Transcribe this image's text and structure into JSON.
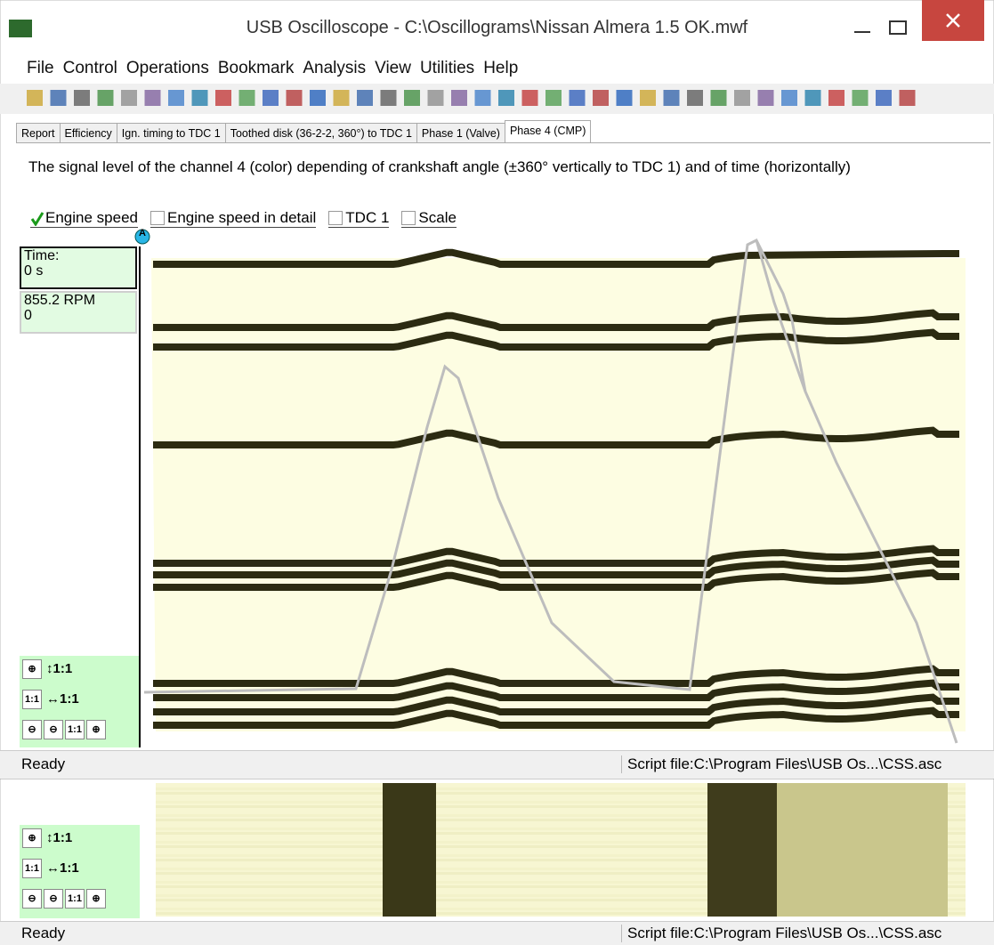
{
  "window": {
    "title": "USB Oscilloscope - C:\\Oscillograms\\Nissan Almera 1.5 OK.mwf"
  },
  "menu": [
    "File",
    "Control",
    "Operations",
    "Bookmark",
    "Analysis",
    "View",
    "Utilities",
    "Help"
  ],
  "tabs": [
    "Report",
    "Efficiency",
    "Ign. timing to TDC 1",
    "Toothed disk (36-2-2, 360°) to TDC 1",
    "Phase 1 (Valve)",
    "Phase 4 (CMP)"
  ],
  "description": "The signal level of the channel 4 (color) depending of crankshaft angle (±360° vertically to TDC 1) and of time (horizontally)",
  "options": [
    {
      "label": "Engine speed",
      "checked": true
    },
    {
      "label": "Engine speed in detail",
      "checked": false
    },
    {
      "label": "TDC 1",
      "checked": false
    },
    {
      "label": "Scale",
      "checked": false
    }
  ],
  "cursor_label": "A",
  "readout": {
    "time_label": "Time:",
    "time": "0 s",
    "speed": "855.2 RPM",
    "value": "0"
  },
  "zoom": {
    "vertical": "1:1",
    "horizontal": "1:1",
    "reset": "1:1"
  },
  "status": {
    "left": "Ready",
    "right": "Script file:C:\\Program Files\\USB Os...\\CSS.asc"
  }
}
